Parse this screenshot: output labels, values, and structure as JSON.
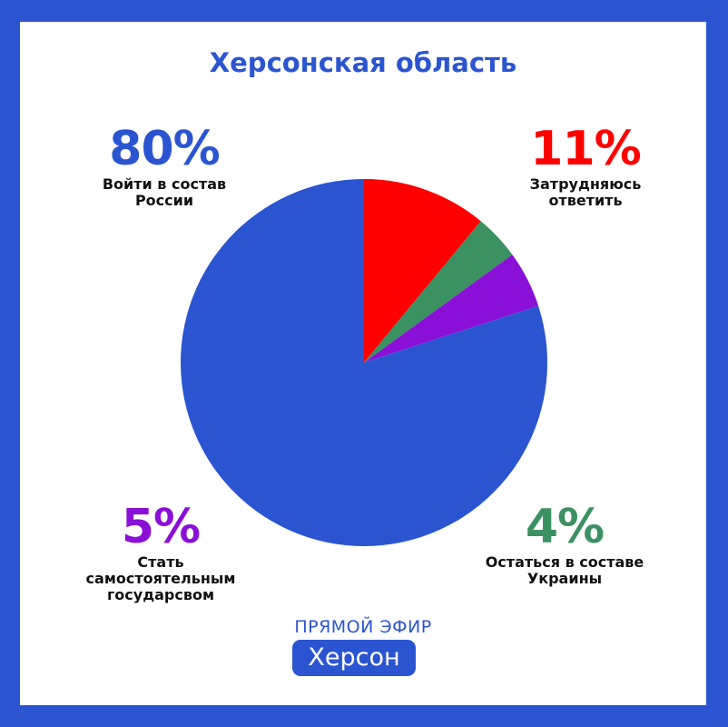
{
  "title": "Херсонская область",
  "chart_data": {
    "type": "pie",
    "title": "Херсонская область",
    "slices": [
      {
        "label": "Войти в состав\nРоссии",
        "value": 80,
        "value_label": "80%",
        "color": "#2b55d0"
      },
      {
        "label": "Затрудняюсь\nответить",
        "value": 11,
        "value_label": "11%",
        "color": "#ff0000"
      },
      {
        "label": "Остаться в составе\nУкраины",
        "value": 4,
        "value_label": "4%",
        "color": "#3b9161"
      },
      {
        "label": "Стать\nсамостоятельным\nгосударсвом",
        "value": 5,
        "value_label": "5%",
        "color": "#8a10d8"
      }
    ],
    "draw_order": [
      1,
      2,
      3,
      0
    ]
  },
  "brand": {
    "top_text": "ПРЯМОЙ ЭФИР",
    "name": "Херсон"
  }
}
